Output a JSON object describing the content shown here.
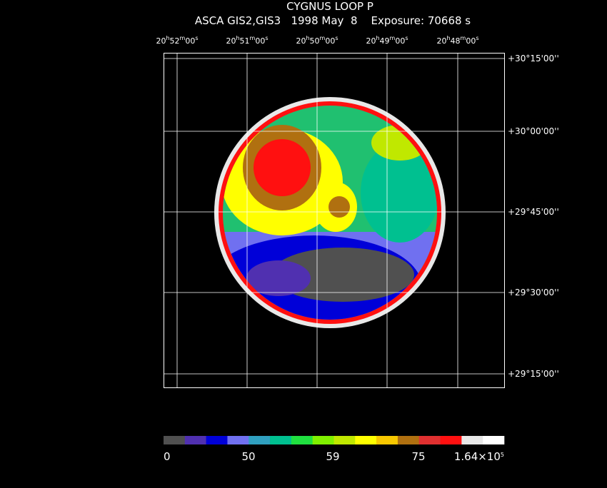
{
  "header": {
    "title": "CYGNUS LOOP P",
    "subtitle": "ASCA GIS2,GIS3   1998 May  8    Exposure: 70668 s"
  },
  "ra_ticks": [
    [
      "20",
      "h",
      "52",
      "m",
      "00",
      "s"
    ],
    [
      "20",
      "h",
      "51",
      "m",
      "00",
      "s"
    ],
    [
      "20",
      "h",
      "50",
      "m",
      "00",
      "s"
    ],
    [
      "20",
      "h",
      "49",
      "m",
      "00",
      "s"
    ],
    [
      "20",
      "h",
      "48",
      "m",
      "00",
      "s"
    ]
  ],
  "dec_ticks": [
    "+30°15'00''",
    "+30°00'00''",
    "+29°45'00''",
    "+29°30'00''",
    "+29°15'00''"
  ],
  "colorbar": {
    "colors": [
      "#505050",
      "#5030b0",
      "#0000d8",
      "#7070f0",
      "#30a0c0",
      "#00c090",
      "#20e040",
      "#80f000",
      "#c0e800",
      "#ffff00",
      "#f8c800",
      "#b07010",
      "#e03030",
      "#ff1010",
      "#e8e8e8",
      "#ffffff"
    ],
    "labels": [
      [
        "0"
      ],
      [
        "50"
      ],
      [
        "59"
      ],
      [
        "75"
      ],
      [
        "1.64×10",
        "5"
      ]
    ]
  }
}
